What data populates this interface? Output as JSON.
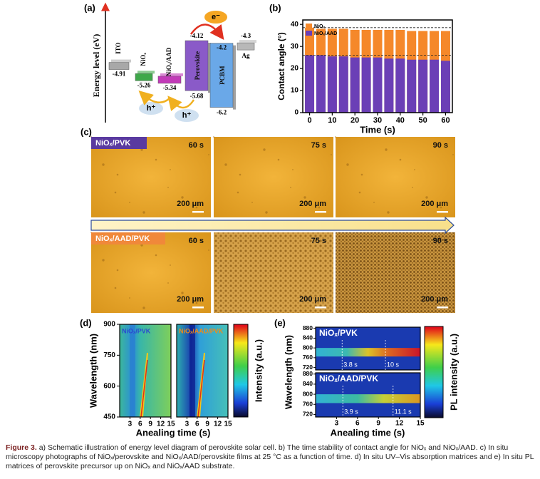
{
  "panel_labels": [
    "(a)",
    "(b)",
    "(c)",
    "(d)",
    "(e)"
  ],
  "energy_diagram": {
    "axis_label": "Energy level (eV)",
    "electron": "e⁻",
    "hole": "h⁺",
    "layers": [
      {
        "name": "ITO",
        "levels": [
          -4.91
        ]
      },
      {
        "name": "NiOₓ",
        "levels": [
          -5.26
        ]
      },
      {
        "name": "NiOₓ/AAD",
        "levels": [
          -5.34
        ]
      },
      {
        "name": "Perovskite",
        "levels": [
          -4.12,
          -5.68
        ]
      },
      {
        "name": "PCBM",
        "levels": [
          -4.2,
          -6.2
        ]
      },
      {
        "name": "Ag",
        "levels": [
          -4.3
        ]
      }
    ]
  },
  "chart_data": {
    "type": "bar",
    "x": [
      0,
      5,
      10,
      15,
      20,
      25,
      30,
      35,
      40,
      45,
      50,
      55,
      60
    ],
    "series": [
      {
        "name": "NiOₓ",
        "color": "#f5882a",
        "values": [
          38.5,
          38,
          38,
          38,
          37.5,
          37.5,
          37.5,
          37.5,
          37.5,
          37,
          37,
          37,
          37
        ]
      },
      {
        "name": "NiOₓ/AAD",
        "color": "#6b3fb6",
        "values": [
          26,
          26,
          25.5,
          25.5,
          25,
          25,
          25,
          24.5,
          24.5,
          24,
          24,
          24,
          23.5
        ]
      }
    ],
    "xlim": [
      -3,
      63
    ],
    "ylim": [
      0,
      42
    ],
    "xticks": [
      0,
      10,
      20,
      30,
      40,
      50,
      60
    ],
    "yticks": [
      0,
      10,
      20,
      30,
      40
    ],
    "reference_lines": [
      38.5,
      26
    ],
    "xlabel": "Time (s)",
    "ylabel": "Contact angle (°)",
    "legend": "upper left"
  },
  "micrographs": {
    "rows": [
      "NiOₓ/PVK",
      "NiOₓ/AAD/PVK"
    ],
    "times": [
      "60 s",
      "75 s",
      "90 s"
    ],
    "scale_bar": "200 μm"
  },
  "absorption_maps": {
    "maps": [
      "NiOₓ/PVK",
      "NiOₓ/AAD/PVK"
    ],
    "xlim": [
      0,
      15
    ],
    "xticks": [
      3,
      6,
      9,
      12,
      15
    ],
    "ylim": [
      450,
      900
    ],
    "yticks": [
      450,
      600,
      750,
      900
    ],
    "xlabel": "Anealing time (s)",
    "ylabel": "Wavelength (nm)",
    "colorbar_label": "Intensity (a.u.)"
  },
  "pl_maps": {
    "maps": [
      {
        "name": "NiOₓ/PVK",
        "markers": [
          {
            "value": 3.8,
            "label": "3.8 s"
          },
          {
            "value": 10,
            "label": "10 s"
          }
        ]
      },
      {
        "name": "NiOₓ/AAD/PVK",
        "markers": [
          {
            "value": 3.9,
            "label": "3.9 s"
          },
          {
            "value": 11.1,
            "label": "11.1 s"
          }
        ]
      }
    ],
    "xlim": [
      0,
      15
    ],
    "xticks": [
      3,
      6,
      9,
      12,
      15
    ],
    "ylim": [
      710,
      885
    ],
    "yticks": [
      720,
      760,
      800,
      840,
      880
    ],
    "xlabel": "Anealing time (s)",
    "ylabel": "Wavelength (nm)",
    "colorbar_label": "PL intensity (a.u.)"
  },
  "caption": {
    "label": "Figure 3.",
    "text": "a) Schematic illustration of energy level diagram of perovskite solar cell. b) The time stability of contact angle for NiOₓ and NiOₓ/AAD. c) In situ microscopy photographs of NiOₓ/perovskite and NiOₓ/AAD/perovskite films at 25 °C as a function of time. d) In situ UV–Vis absorption matrices and e) In situ PL matrices of perovskite precursor up on NiOₓ and NiOₓ/AAD substrate."
  }
}
